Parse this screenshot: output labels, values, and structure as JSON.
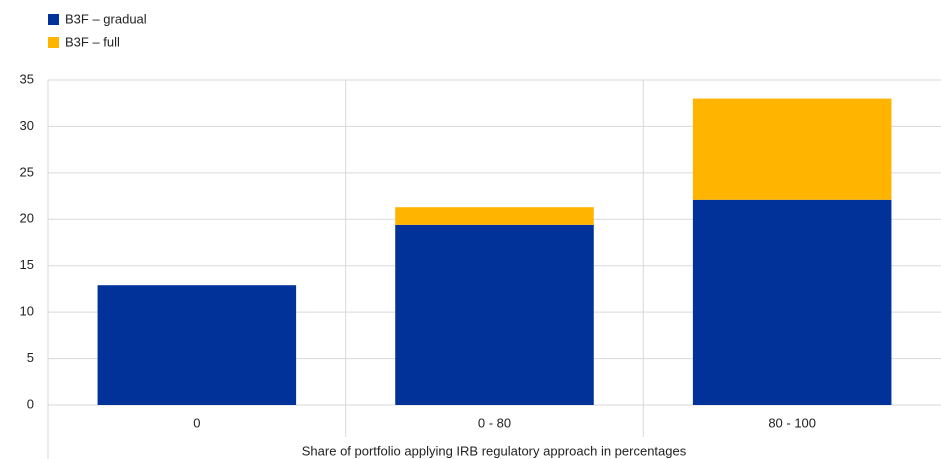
{
  "chart_data": {
    "type": "bar",
    "stacked": true,
    "categories": [
      "0",
      "0 - 80",
      "80 - 100"
    ],
    "series": [
      {
        "name": "B3F – gradual",
        "color": "#003299",
        "values": [
          12.9,
          19.4,
          22.1
        ]
      },
      {
        "name": "B3F – full",
        "color": "#ffb400",
        "values": [
          0,
          1.9,
          10.9
        ]
      }
    ],
    "x_label": "Share of portfolio applying IRB regulatory approach in percentages",
    "ylim": [
      0,
      35
    ],
    "yticks": [
      0,
      5,
      10,
      15,
      20,
      25,
      30,
      35
    ],
    "grid": true
  }
}
